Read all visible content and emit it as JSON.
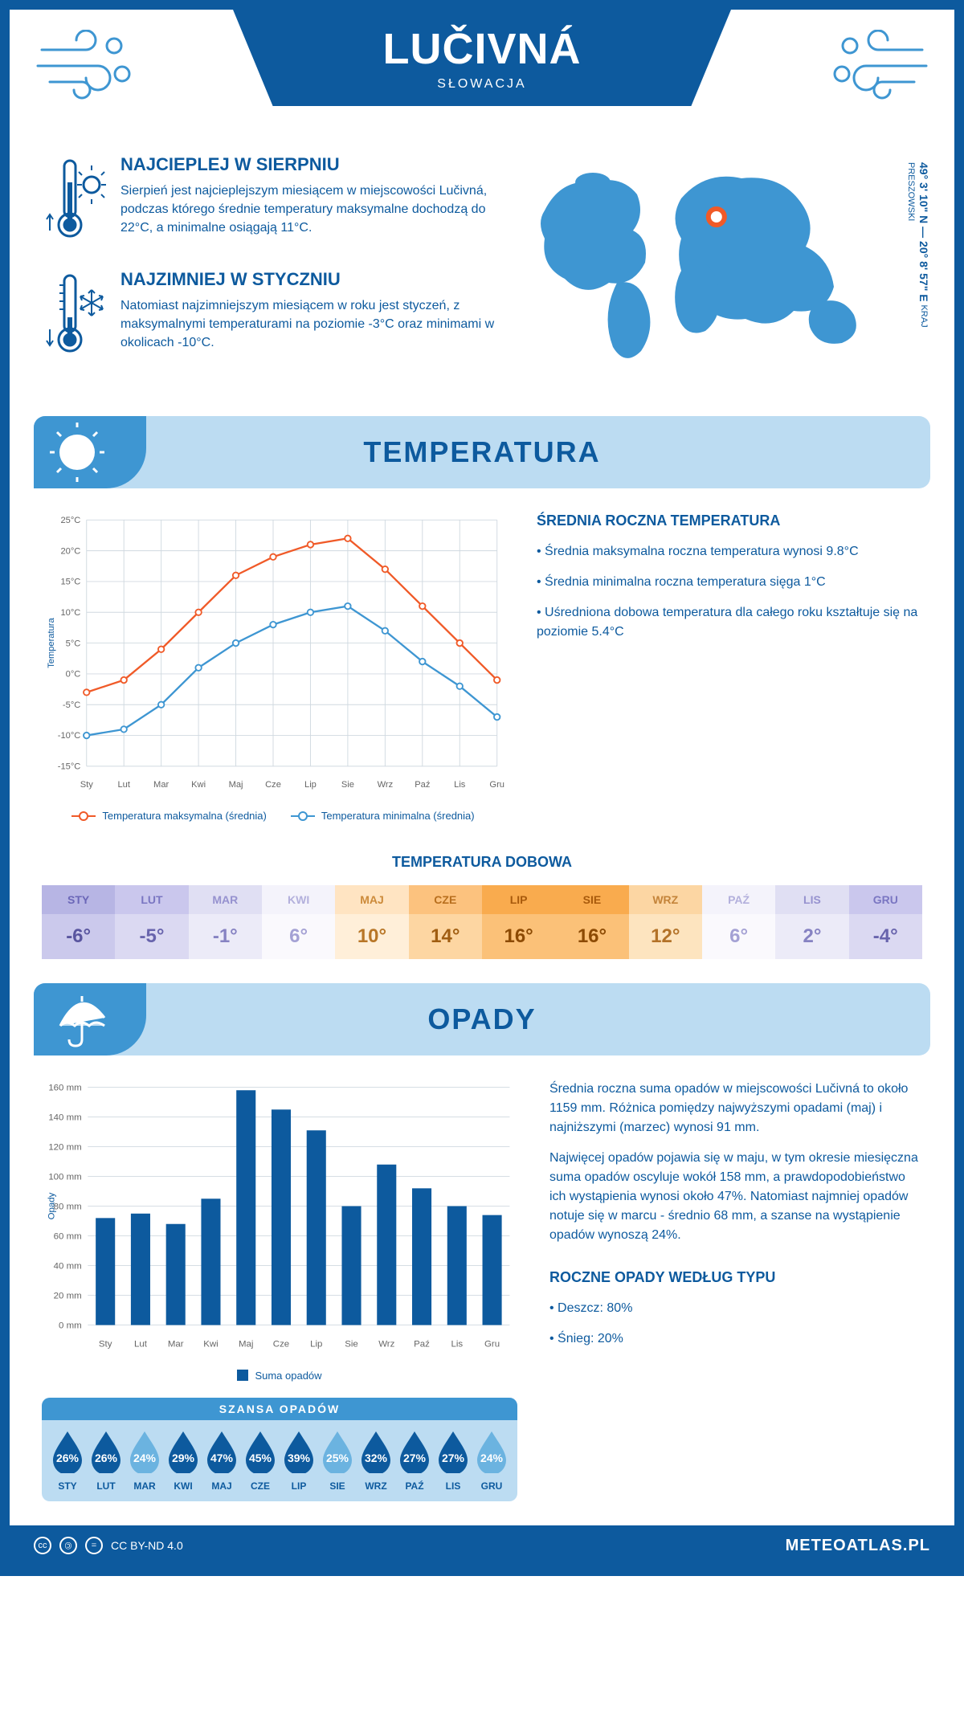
{
  "header": {
    "title": "LUČIVNÁ",
    "subtitle": "SŁOWACJA"
  },
  "location": {
    "coords": "49° 3' 10\" N — 20° 8' 57\" E",
    "region": "KRAJ PRESZOWSKI",
    "marker": {
      "cx_pct": 53,
      "cy_pct": 30
    }
  },
  "facts": {
    "hot": {
      "title": "NAJCIEPLEJ W SIERPNIU",
      "text": "Sierpień jest najcieplejszym miesiącem w miejscowości Lučivná, podczas którego średnie temperatury maksymalne dochodzą do 22°C, a minimalne osiągają 11°C."
    },
    "cold": {
      "title": "NAJZIMNIEJ W STYCZNIU",
      "text": "Natomiast najzimniejszym miesiącem w roku jest styczeń, z maksymalnymi temperaturami na poziomie -3°C oraz minimami w okolicach -10°C."
    }
  },
  "temp_section": {
    "title": "TEMPERATURA",
    "chart": {
      "type": "line",
      "months": [
        "Sty",
        "Lut",
        "Mar",
        "Kwi",
        "Maj",
        "Cze",
        "Lip",
        "Sie",
        "Wrz",
        "Paź",
        "Lis",
        "Gru"
      ],
      "series": [
        {
          "name": "Temperatura maksymalna (średnia)",
          "color": "#f05a28",
          "values": [
            -3,
            -1,
            4,
            10,
            16,
            19,
            21,
            22,
            17,
            11,
            5,
            -1
          ]
        },
        {
          "name": "Temperatura minimalna (średnia)",
          "color": "#3e96d2",
          "values": [
            -10,
            -9,
            -5,
            1,
            5,
            8,
            10,
            11,
            7,
            2,
            -2,
            -7
          ]
        }
      ],
      "ylim": [
        -15,
        25
      ],
      "ytick_step": 5,
      "yunit": "°C",
      "yaxis_label": "Temperatura",
      "grid_color": "#d0d9e0",
      "background": "#ffffff",
      "line_width": 2.5,
      "marker": "circle"
    },
    "summary": {
      "title": "ŚREDNIA ROCZNA TEMPERATURA",
      "bullets": [
        "Średnia maksymalna roczna temperatura wynosi 9.8°C",
        "Średnia minimalna roczna temperatura sięga 1°C",
        "Uśredniona dobowa temperatura dla całego roku kształtuje się na poziomie 5.4°C"
      ]
    },
    "daily_table": {
      "title": "TEMPERATURA DOBOWA",
      "months": [
        "STY",
        "LUT",
        "MAR",
        "KWI",
        "MAJ",
        "CZE",
        "LIP",
        "SIE",
        "WRZ",
        "PAŹ",
        "LIS",
        "GRU"
      ],
      "values": [
        "-6°",
        "-5°",
        "-1°",
        "6°",
        "10°",
        "14°",
        "16°",
        "16°",
        "12°",
        "6°",
        "2°",
        "-4°"
      ],
      "cell_colors": {
        "header": [
          "#b7b5e4",
          "#cac7ed",
          "#e0dff3",
          "#f4f3fb",
          "#ffe4c2",
          "#fcc27e",
          "#f9ab4e",
          "#f9ab4e",
          "#fcd6a3",
          "#f4f3fb",
          "#e0dff3",
          "#cac7ed"
        ],
        "value": [
          "#cbc9ec",
          "#dbd9f2",
          "#ecebf8",
          "#faf9fd",
          "#ffefd9",
          "#fdd6a2",
          "#fbc178",
          "#fbc178",
          "#fde4bf",
          "#faf9fd",
          "#ecebf8",
          "#dbd9f2"
        ]
      },
      "text_colors": {
        "header": [
          "#6b67b8",
          "#7a76c2",
          "#9692cf",
          "#b3b0dc",
          "#cc8a3a",
          "#b86f1e",
          "#a85a0c",
          "#a85a0c",
          "#c4843a",
          "#b3b0dc",
          "#9692cf",
          "#7a76c2"
        ],
        "value": [
          "#59559f",
          "#6864ad",
          "#8682c2",
          "#a4a1d4",
          "#b87627",
          "#a05d11",
          "#8c4a03",
          "#8c4a03",
          "#b37228",
          "#a4a1d4",
          "#8682c2",
          "#6864ad"
        ]
      }
    }
  },
  "precip_section": {
    "title": "OPADY",
    "chart": {
      "type": "bar",
      "months": [
        "Sty",
        "Lut",
        "Mar",
        "Kwi",
        "Maj",
        "Cze",
        "Lip",
        "Sie",
        "Wrz",
        "Paź",
        "Lis",
        "Gru"
      ],
      "values": [
        72,
        75,
        68,
        85,
        158,
        145,
        131,
        80,
        108,
        92,
        80,
        74
      ],
      "bar_color": "#0d5a9e",
      "ylim": [
        0,
        160
      ],
      "ytick_step": 20,
      "yunit": " mm",
      "yaxis_label": "Opady",
      "legend": "Suma opadów",
      "grid_color": "#d0d9e0",
      "bar_width_ratio": 0.55
    },
    "summary": {
      "p1": "Średnia roczna suma opadów w miejscowości Lučivná to około 1159 mm. Różnica pomiędzy najwyższymi opadami (maj) i najniższymi (marzec) wynosi 91 mm.",
      "p2": "Najwięcej opadów pojawia się w maju, w tym okresie miesięczna suma opadów oscyluje wokół 158 mm, a prawdopodobieństwo ich wystąpienia wynosi około 47%. Natomiast najmniej opadów notuje się w marcu - średnio 68 mm, a szanse na wystąpienie opadów wynoszą 24%."
    },
    "chance": {
      "title": "SZANSA OPADÓW",
      "months": [
        "STY",
        "LUT",
        "MAR",
        "KWI",
        "MAJ",
        "CZE",
        "LIP",
        "SIE",
        "WRZ",
        "PAŹ",
        "LIS",
        "GRU"
      ],
      "values": [
        26,
        26,
        24,
        29,
        47,
        45,
        39,
        25,
        32,
        27,
        27,
        24
      ],
      "dark": "#0d5a9e",
      "light": "#6bb3e0",
      "threshold_light": 25
    },
    "types": {
      "title": "ROCZNE OPADY WEDŁUG TYPU",
      "items": [
        "Deszcz: 80%",
        "Śnieg: 20%"
      ]
    }
  },
  "footer": {
    "license": "CC BY-ND 4.0",
    "brand": "METEOATLAS.PL"
  },
  "palette": {
    "primary": "#0d5a9e",
    "light_blue": "#bcdcf2",
    "mid_blue": "#3e96d2",
    "orange": "#f05a28"
  }
}
